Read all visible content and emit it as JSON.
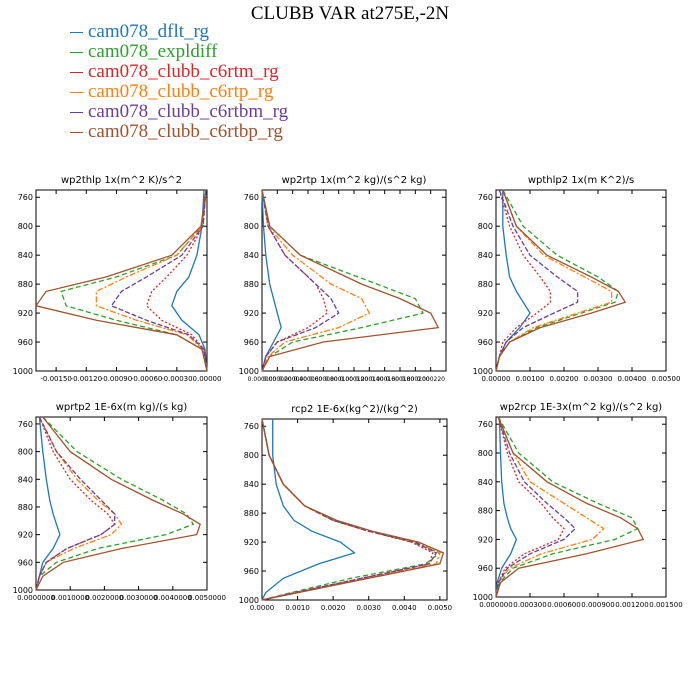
{
  "title": "CLUBB VAR at275E,-2N",
  "legend": [
    {
      "name": "cam078_dflt_rg",
      "color": "#1f77b4",
      "dash": ""
    },
    {
      "name": "cam078_expldiff",
      "color": "#2ca02c",
      "dash": "5,3"
    },
    {
      "name": "cam078_clubb_c6rtm_rg",
      "color": "#d62728",
      "dash": "2,2"
    },
    {
      "name": "cam078_clubb_c6rtp_rg",
      "color": "#ff7f0e",
      "dash": "6,2,2,2"
    },
    {
      "name": "cam078_clubb_c6rtbm_rg",
      "color": "#6a3d9a",
      "dash": "5,2"
    },
    {
      "name": "cam078_clubb_c6rtbp_rg",
      "color": "#a0522d",
      "dash": ""
    }
  ],
  "chart_data": [
    {
      "type": "line",
      "title": "wp2thlp",
      "units": "1x(m^2 K)/s^2",
      "ylim": [
        1000,
        750
      ],
      "y_ticks": [
        760,
        800,
        840,
        880,
        920,
        960,
        1000
      ],
      "xlim": [
        -0.0017,
        0.0
      ],
      "x_ticks": [
        -0.0015,
        -0.0012,
        -0.0009,
        -0.0006,
        -0.0003,
        0.0
      ],
      "x_tick_labels": [
        "-0.00150",
        "-0.00120",
        "-0.00090",
        "-0.00060",
        "-0.00030",
        "0.00000"
      ],
      "y": [
        750,
        800,
        840,
        870,
        890,
        910,
        930,
        950,
        970,
        1000
      ],
      "series": [
        {
          "values": [
            -3e-05,
            -5e-05,
            -0.0001,
            -0.00018,
            -0.0003,
            -0.00035,
            -0.00025,
            -8e-05,
            -2e-05,
            0.0
          ]
        },
        {
          "values": [
            -1e-05,
            -5e-05,
            -0.0003,
            -0.0009,
            -0.00145,
            -0.0014,
            -0.0009,
            -0.0003,
            -5e-05,
            0.0
          ]
        },
        {
          "values": [
            -1e-05,
            -4e-05,
            -0.0002,
            -0.0004,
            -0.00055,
            -0.0006,
            -0.00045,
            -0.00015,
            -3e-05,
            0.0
          ]
        },
        {
          "values": [
            -1e-05,
            -5e-05,
            -0.0003,
            -0.0008,
            -0.0011,
            -0.0011,
            -0.0007,
            -0.0002,
            -4e-05,
            0.0
          ]
        },
        {
          "values": [
            -1e-05,
            -4e-05,
            -0.00025,
            -0.0006,
            -0.00085,
            -0.00095,
            -0.0006,
            -0.00018,
            -3e-05,
            0.0
          ]
        },
        {
          "values": [
            -1e-05,
            -6e-05,
            -0.00035,
            -0.001,
            -0.0016,
            -0.0017,
            -0.0011,
            -0.0003,
            -5e-05,
            0.0
          ]
        }
      ]
    },
    {
      "type": "line",
      "title": "wp2rtp",
      "units": "1x(m^2 kg)/(s^2 kg)",
      "ylim": [
        1000,
        750
      ],
      "y_ticks": [
        760,
        800,
        840,
        880,
        920,
        960,
        1000
      ],
      "xlim": [
        0.0,
        0.00024
      ],
      "x_ticks": [
        0.0,
        2e-05,
        4e-05,
        6e-05,
        8e-05,
        0.0001,
        0.00012,
        0.00014,
        0.00016,
        0.00018,
        0.0002,
        0.00022
      ],
      "x_tick_labels": [
        "0.000000",
        "0.000020",
        "0.000040",
        "0.000060",
        "0.000080",
        "0.000100",
        "0.000120",
        "0.000140",
        "0.000160",
        "0.000180",
        "0.000200",
        "0.000220"
      ],
      "y": [
        750,
        800,
        840,
        880,
        900,
        920,
        940,
        960,
        980,
        1000
      ],
      "series": [
        {
          "values": [
            0.0,
            2e-06,
            5e-06,
            1e-05,
            1.5e-05,
            2e-05,
            2.5e-05,
            1.5e-05,
            5e-06,
            0.0
          ]
        },
        {
          "values": [
            0.0,
            1e-05,
            5e-05,
            0.00015,
            0.0002,
            0.00021,
            0.00013,
            4e-05,
            1e-05,
            0.0
          ]
        },
        {
          "values": [
            0.0,
            8e-06,
            3e-05,
            7e-05,
            8e-05,
            8.5e-05,
            6e-05,
            2e-05,
            5e-06,
            0.0
          ]
        },
        {
          "values": [
            0.0,
            8e-06,
            4e-05,
            9e-05,
            0.00013,
            0.00014,
            0.0001,
            3e-05,
            8e-06,
            0.0
          ]
        },
        {
          "values": [
            0.0,
            8e-06,
            3e-05,
            7e-05,
            9e-05,
            0.0001,
            7e-05,
            2e-05,
            5e-06,
            0.0
          ]
        },
        {
          "values": [
            0.0,
            1e-05,
            5e-05,
            0.00013,
            0.00018,
            0.00022,
            0.00023,
            8e-05,
            1e-05,
            0.0
          ]
        }
      ]
    },
    {
      "type": "line",
      "title": "wpthlp2",
      "units": "1x(m K^2)/s",
      "ylim": [
        1000,
        750
      ],
      "y_ticks": [
        760,
        800,
        840,
        880,
        920,
        960,
        1000
      ],
      "xlim": [
        0.0,
        0.005
      ],
      "x_ticks": [
        0.0,
        0.001,
        0.002,
        0.003,
        0.004,
        0.005
      ],
      "x_tick_labels": [
        "0.00000",
        "0.00100",
        "0.00200",
        "0.00300",
        "0.00400",
        "0.00500"
      ],
      "y": [
        750,
        800,
        840,
        870,
        890,
        905,
        920,
        940,
        960,
        980,
        1000
      ],
      "series": [
        {
          "values": [
            0.0002,
            0.0002,
            0.0003,
            0.0004,
            0.0006,
            0.0008,
            0.001,
            0.0007,
            0.0003,
            0.0001,
            0.0
          ]
        },
        {
          "values": [
            0.0002,
            0.0008,
            0.0018,
            0.003,
            0.0036,
            0.0035,
            0.0025,
            0.0012,
            0.0004,
            0.0001,
            0.0
          ]
        },
        {
          "values": [
            0.0001,
            0.0004,
            0.0008,
            0.0013,
            0.0016,
            0.0016,
            0.0012,
            0.0006,
            0.0002,
            0.0001,
            0.0
          ]
        },
        {
          "values": [
            0.0002,
            0.0006,
            0.0014,
            0.0026,
            0.0034,
            0.0034,
            0.0024,
            0.0011,
            0.0004,
            0.0001,
            0.0
          ]
        },
        {
          "values": [
            0.0001,
            0.0005,
            0.001,
            0.0018,
            0.0024,
            0.0024,
            0.0017,
            0.0008,
            0.0003,
            0.0001,
            0.0
          ]
        },
        {
          "values": [
            0.0002,
            0.0006,
            0.0015,
            0.0028,
            0.0036,
            0.0038,
            0.0028,
            0.0013,
            0.0004,
            0.0001,
            0.0
          ]
        }
      ]
    },
    {
      "type": "line",
      "title": "wprtp2",
      "units": "1E-6x(m kg)/(s kg)",
      "ylim": [
        1000,
        750
      ],
      "y_ticks": [
        760,
        800,
        840,
        880,
        920,
        960,
        1000
      ],
      "xlim": [
        0.0,
        0.005
      ],
      "x_ticks": [
        0.0,
        0.001,
        0.002,
        0.003,
        0.004,
        0.005
      ],
      "x_tick_labels": [
        "0.0000000",
        "0.0010000",
        "0.0020000",
        "0.0030000",
        "0.0040000",
        "0.0050000"
      ],
      "y": [
        750,
        800,
        840,
        870,
        890,
        905,
        920,
        940,
        960,
        980,
        1000
      ],
      "series": [
        {
          "values": [
            0.0001,
            0.0002,
            0.0003,
            0.0004,
            0.0005,
            0.0006,
            0.0007,
            0.0005,
            0.0002,
            0.0001,
            0.0
          ]
        },
        {
          "values": [
            0.0002,
            0.0012,
            0.0025,
            0.0037,
            0.0044,
            0.0046,
            0.0038,
            0.0018,
            0.0006,
            0.0001,
            0.0
          ]
        },
        {
          "values": [
            0.0001,
            0.0005,
            0.001,
            0.0016,
            0.0021,
            0.0023,
            0.0019,
            0.0009,
            0.0003,
            0.0001,
            0.0
          ]
        },
        {
          "values": [
            0.0001,
            0.0006,
            0.0012,
            0.0018,
            0.0023,
            0.0025,
            0.0022,
            0.0011,
            0.0003,
            0.0001,
            0.0
          ]
        },
        {
          "values": [
            0.0001,
            0.0006,
            0.0013,
            0.0019,
            0.0023,
            0.0023,
            0.0019,
            0.0009,
            0.0003,
            0.0001,
            0.0
          ]
        },
        {
          "values": [
            0.0002,
            0.001,
            0.0022,
            0.0034,
            0.0043,
            0.0048,
            0.0047,
            0.0025,
            0.0008,
            0.0002,
            0.0
          ]
        }
      ]
    },
    {
      "type": "line",
      "title": "rcp2",
      "units": "1E-6x(kg^2)/(kg^2)",
      "ylim": [
        1000,
        750
      ],
      "y_ticks": [
        760,
        800,
        840,
        880,
        920,
        960,
        1000
      ],
      "xlim": [
        0.0,
        0.0052
      ],
      "x_ticks": [
        0.0,
        0.001,
        0.002,
        0.003,
        0.004,
        0.005
      ],
      "x_tick_labels": [
        "0.0000",
        "0.0010",
        "0.0020",
        "0.0030",
        "0.0040",
        "0.0050"
      ],
      "y": [
        750,
        800,
        840,
        870,
        890,
        905,
        920,
        935,
        950,
        970,
        990,
        1000
      ],
      "series": [
        {
          "values": [
            0.0003,
            0.0003,
            0.0004,
            0.0006,
            0.0009,
            0.0014,
            0.0022,
            0.0026,
            0.0016,
            0.0006,
            0.0001,
            0.0
          ]
        },
        {
          "values": [
            0.0,
            0.0002,
            0.0006,
            0.0012,
            0.002,
            0.003,
            0.0042,
            0.005,
            0.0046,
            0.0025,
            0.0008,
            0.0
          ]
        },
        {
          "values": [
            0.0,
            0.0002,
            0.0006,
            0.0012,
            0.002,
            0.003,
            0.0042,
            0.0048,
            0.0047,
            0.0028,
            0.0009,
            0.0
          ]
        },
        {
          "values": [
            0.0,
            0.0002,
            0.0006,
            0.0012,
            0.002,
            0.003,
            0.0043,
            0.005,
            0.0049,
            0.0029,
            0.0009,
            0.0
          ]
        },
        {
          "values": [
            0.0,
            0.0002,
            0.0006,
            0.0012,
            0.002,
            0.003,
            0.0043,
            0.0049,
            0.0047,
            0.0028,
            0.0009,
            0.0
          ]
        },
        {
          "values": [
            0.0,
            0.0002,
            0.0006,
            0.0012,
            0.0021,
            0.0031,
            0.0044,
            0.0051,
            0.005,
            0.003,
            0.001,
            0.0
          ]
        }
      ]
    },
    {
      "type": "line",
      "title": "wp2rcp",
      "units": "1E-3x(m^2 kg)/(s^2 kg)",
      "ylim": [
        1000,
        750
      ],
      "y_ticks": [
        760,
        800,
        840,
        880,
        920,
        960,
        1000
      ],
      "xlim": [
        0.0,
        0.0015
      ],
      "x_ticks": [
        0.0,
        0.0003,
        0.0006,
        0.0009,
        0.0012,
        0.0015
      ],
      "x_tick_labels": [
        "0.000000",
        "0.000300",
        "0.000600",
        "0.000900",
        "0.001200",
        "0.001500"
      ],
      "y": [
        750,
        800,
        840,
        870,
        890,
        905,
        920,
        940,
        960,
        980,
        1000
      ],
      "series": [
        {
          "values": [
            3e-05,
            4e-05,
            5e-05,
            7e-05,
            0.0001,
            0.00013,
            0.00018,
            0.00013,
            5e-05,
            1e-05,
            0.0
          ]
        },
        {
          "values": [
            2e-05,
            0.0002,
            0.0005,
            0.0009,
            0.0012,
            0.00125,
            0.00105,
            0.0005,
            0.00015,
            3e-05,
            0.0
          ]
        },
        {
          "values": [
            2e-05,
            0.0001,
            0.0002,
            0.0004,
            0.0005,
            0.0006,
            0.00055,
            0.00025,
            8e-05,
            2e-05,
            0.0
          ]
        },
        {
          "values": [
            2e-05,
            0.00015,
            0.0003,
            0.0006,
            0.0008,
            0.00095,
            0.00085,
            0.0004,
            0.00012,
            2e-05,
            0.0
          ]
        },
        {
          "values": [
            2e-05,
            0.00012,
            0.00025,
            0.00045,
            0.0006,
            0.0007,
            0.0006,
            0.0003,
            0.0001,
            2e-05,
            0.0
          ]
        },
        {
          "values": [
            2e-05,
            0.00015,
            0.00045,
            0.0008,
            0.0011,
            0.00125,
            0.0013,
            0.0008,
            0.0002,
            4e-05,
            0.0
          ]
        }
      ]
    }
  ]
}
